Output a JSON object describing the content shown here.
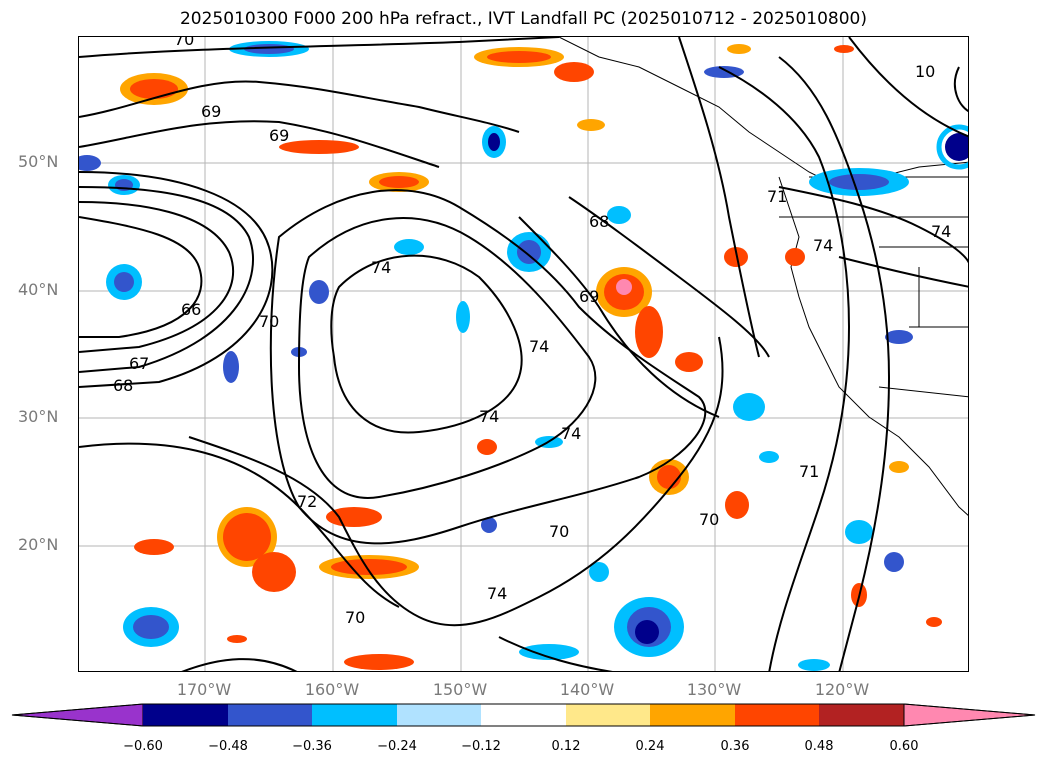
{
  "title": "2025010300 F000 200 hPa refract., IVT Landfall PC (2025010712 - 2025010800)",
  "axes": {
    "lat_labels": [
      "50°N",
      "40°N",
      "30°N",
      "20°N"
    ],
    "lon_labels": [
      "170°W",
      "160°W",
      "150°W",
      "140°W",
      "130°W",
      "120°W"
    ]
  },
  "colorbar": {
    "tick_labels": [
      "−0.60",
      "−0.48",
      "−0.36",
      "−0.24",
      "−0.12",
      "0.12",
      "0.24",
      "0.36",
      "0.48",
      "0.60"
    ],
    "colors": [
      "#9933cc",
      "#00008b",
      "#3355cc",
      "#00bfff",
      "#b0e2ff",
      "#ffffff",
      "#ffe88a",
      "#ffa500",
      "#ff4500",
      "#b22222",
      "#ff88b0"
    ]
  },
  "contour_labels": [
    "70",
    "69",
    "69",
    "66",
    "67",
    "68",
    "70",
    "74",
    "72",
    "70",
    "70",
    "74",
    "74",
    "74",
    "68",
    "69",
    "74",
    "71",
    "70",
    "71",
    "74",
    "74",
    "10"
  ],
  "map": {
    "graticule": "on",
    "coastlines": "on",
    "positive_colors": [
      "#ffe88a",
      "#ffa500",
      "#ff4500",
      "#b22222",
      "#ff88b0"
    ],
    "negative_colors": [
      "#b0e2ff",
      "#00bfff",
      "#3355cc",
      "#00008b",
      "#9933cc"
    ]
  }
}
